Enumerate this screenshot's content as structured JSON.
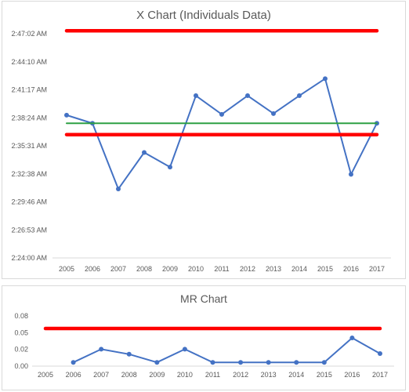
{
  "chart_data": [
    {
      "type": "line",
      "title": "X Chart (Individuals Data)",
      "categories": [
        "2005",
        "2006",
        "2007",
        "2008",
        "2009",
        "2010",
        "2011",
        "2012",
        "2013",
        "2014",
        "2015",
        "2016",
        "2017"
      ],
      "y_unit": "seconds since 2:24:00 AM",
      "y_ticks": [
        "2:24:00 AM",
        "2:26:53 AM",
        "2:29:46 AM",
        "2:32:38 AM",
        "2:35:31 AM",
        "2:38:24 AM",
        "2:41:17 AM",
        "2:44:10 AM",
        "2:47:02 AM"
      ],
      "ylim": [
        0,
        1382
      ],
      "series": [
        {
          "name": "",
          "color": "#4472c4",
          "values": [
            880,
            830,
            425,
            650,
            560,
            1000,
            885,
            1000,
            890,
            1000,
            1105,
            515,
            830
          ]
        },
        {
          "name": "",
          "color": "#2ea043",
          "style": "center-line",
          "values": [
            830,
            830,
            830,
            830,
            830,
            830,
            830,
            830,
            830,
            830,
            830,
            830,
            830
          ]
        },
        {
          "name": "",
          "color": "#ff0000",
          "style": "upper-limit",
          "values": [
            1400,
            1400,
            1400,
            1400,
            1400,
            1400,
            1400,
            1400,
            1400,
            1400,
            1400,
            1400,
            1400
          ]
        },
        {
          "name": "",
          "color": "#ff0000",
          "style": "lower-limit",
          "values": [
            760,
            760,
            760,
            760,
            760,
            760,
            760,
            760,
            760,
            760,
            760,
            760,
            760
          ]
        }
      ]
    },
    {
      "type": "line",
      "title": "MR Chart",
      "categories": [
        "2005",
        "2006",
        "2007",
        "2008",
        "2009",
        "2010",
        "2011",
        "2012",
        "2013",
        "2014",
        "2015",
        "2016",
        "2017"
      ],
      "y_ticks": [
        "0.00",
        "0.02",
        "0.05",
        "0.08"
      ],
      "ylim": [
        0,
        0.08
      ],
      "series": [
        {
          "name": "",
          "color": "#4472c4",
          "values": [
            null,
            0.006,
            0.027,
            0.019,
            0.006,
            0.027,
            0.006,
            0.006,
            0.006,
            0.006,
            0.006,
            0.045,
            0.02
          ]
        },
        {
          "name": "",
          "color": "#ff0000",
          "style": "upper-limit",
          "values": [
            0.06,
            0.06,
            0.06,
            0.06,
            0.06,
            0.06,
            0.06,
            0.06,
            0.06,
            0.06,
            0.06,
            0.06,
            0.06
          ]
        }
      ]
    }
  ]
}
